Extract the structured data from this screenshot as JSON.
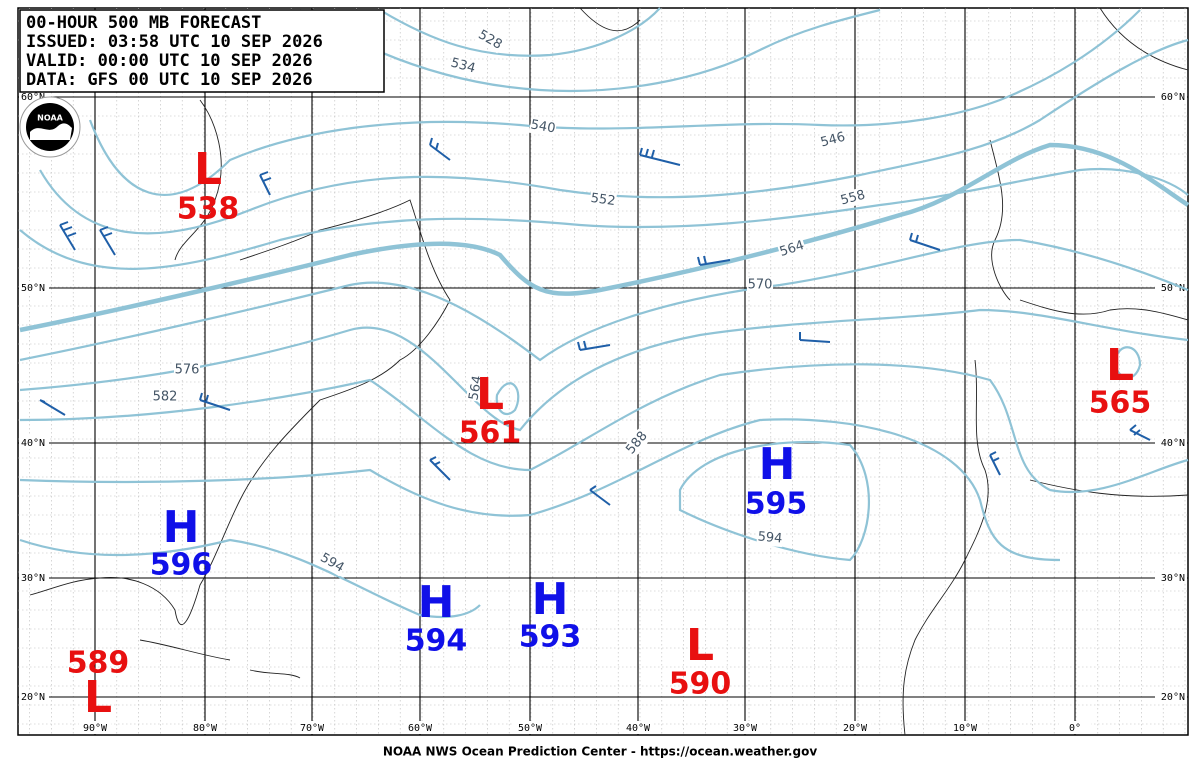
{
  "header": {
    "lines": [
      "00-HOUR 500 MB FORECAST",
      "ISSUED: 03:58 UTC 10 SEP 2026",
      "VALID:  00:00 UTC 10 SEP 2026",
      "DATA:  GFS 00 UTC 10 SEP 2026"
    ],
    "logo": "NOAA"
  },
  "lat_labels": [
    "60°N",
    "50°N",
    "40°N",
    "30°N",
    "20°N"
  ],
  "lon_labels": [
    "90°W",
    "80°W",
    "70°W",
    "60°W",
    "50°W",
    "40°W",
    "30°W",
    "20°W",
    "10°W",
    "0°"
  ],
  "centers": [
    {
      "letter": "L",
      "value": 538
    },
    {
      "letter": "L",
      "value": 561
    },
    {
      "letter": "L",
      "value": 565
    },
    {
      "letter": "H",
      "value": 595
    },
    {
      "letter": "H",
      "value": 596
    },
    {
      "letter": "H",
      "value": 594
    },
    {
      "letter": "H",
      "value": 593
    },
    {
      "letter": "L",
      "value": 590
    },
    {
      "letter": "L",
      "value": 589
    }
  ],
  "contour_labels": [
    "528",
    "534",
    "540",
    "546",
    "552",
    "558",
    "564",
    "570",
    "576",
    "582",
    "564",
    "588",
    "594",
    "594"
  ],
  "footer": "NOAA NWS Ocean Prediction Center - https://ocean.weather.gov"
}
